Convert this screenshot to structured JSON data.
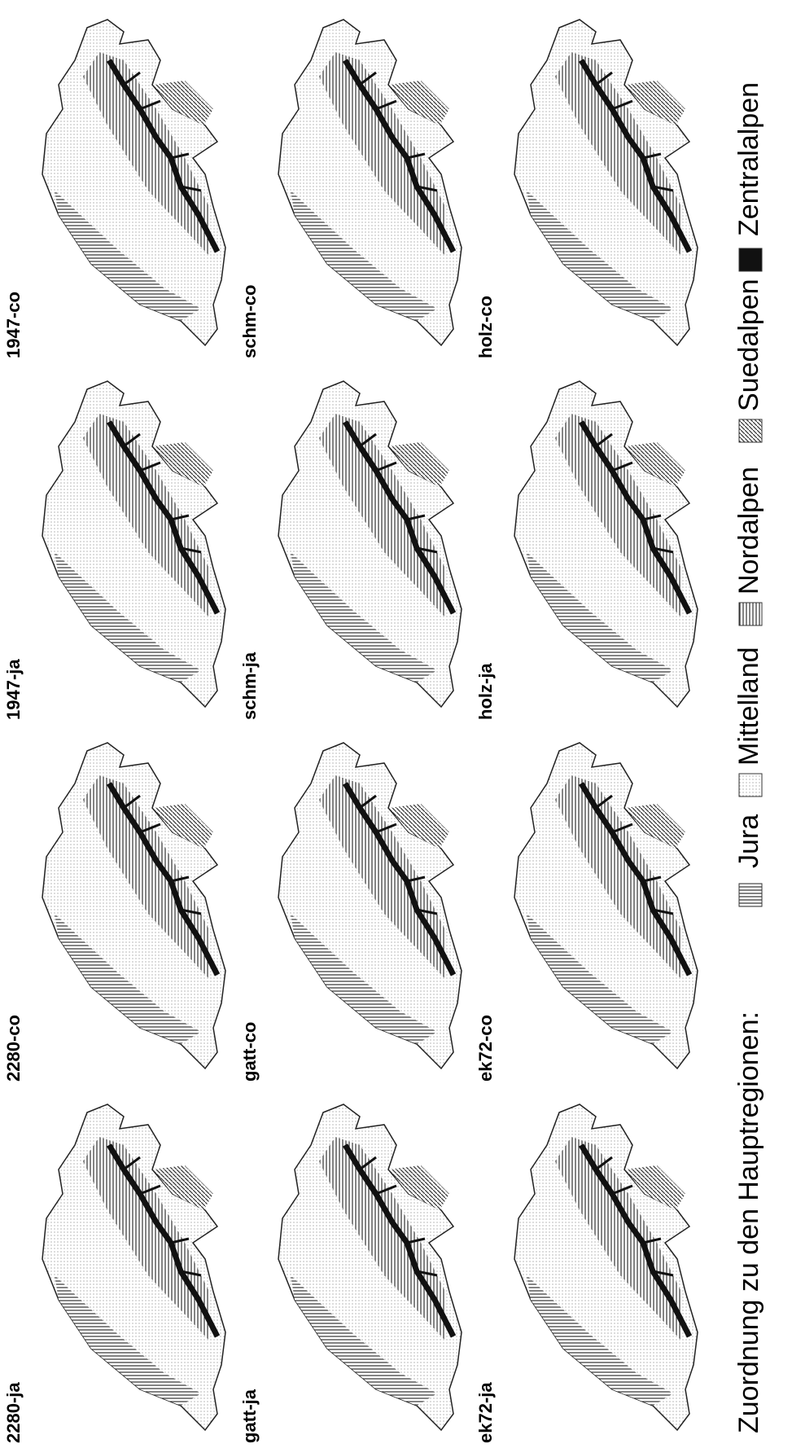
{
  "panels": [
    {
      "label": "2280-ja"
    },
    {
      "label": "2280-co"
    },
    {
      "label": "1947-ja"
    },
    {
      "label": "1947-co"
    },
    {
      "label": "gatt-ja"
    },
    {
      "label": "gatt-co"
    },
    {
      "label": "schm-ja"
    },
    {
      "label": "schm-co"
    },
    {
      "label": "ek72-ja"
    },
    {
      "label": "ek72-co"
    },
    {
      "label": "holz-ja"
    },
    {
      "label": "holz-co"
    }
  ],
  "legend": {
    "title": "Zuordnung zu den Hauptregionen:",
    "items": [
      {
        "label": "Jura"
      },
      {
        "label": "Mittelland"
      },
      {
        "label": "Nordalpen"
      },
      {
        "label": "Suedalpen"
      },
      {
        "label": "Zentralalpen"
      }
    ]
  }
}
